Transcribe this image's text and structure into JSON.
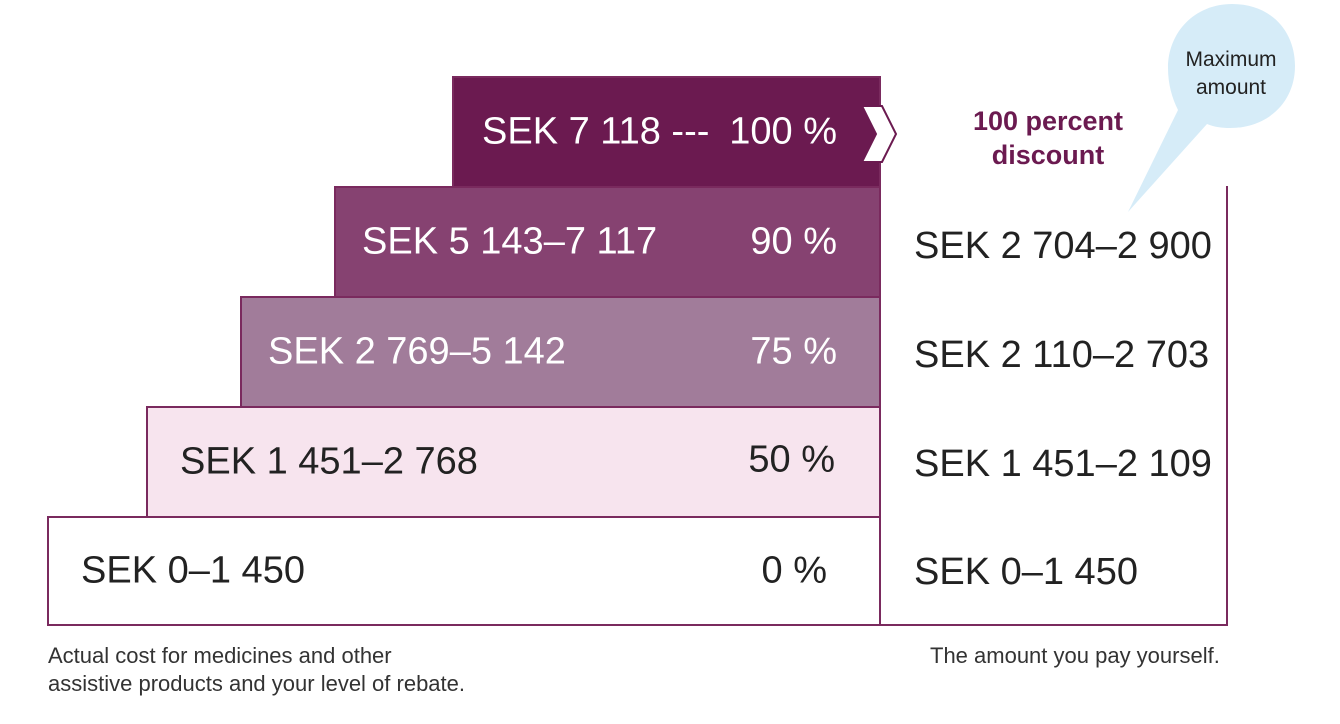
{
  "tiers": [
    {
      "range": "SEK 7 118 ---",
      "rebate": "100 %",
      "fill": "#6b1a50",
      "text_color": "#ffffff"
    },
    {
      "range": "SEK 5 143–7 117",
      "rebate": "90 %",
      "fill": "#864271",
      "text_color": "#ffffff"
    },
    {
      "range": "SEK 2 769–5 142",
      "rebate": "75 %",
      "fill": "#a17c9a",
      "text_color": "#ffffff"
    },
    {
      "range": "SEK 1 451–2 768",
      "rebate": "50 %",
      "fill": "#f7e4ee",
      "text_color": "#222222"
    },
    {
      "range": "SEK 0–1 450",
      "rebate": "0 %",
      "fill": "#ffffff",
      "text_color": "#222222"
    }
  ],
  "top_label": {
    "line1": "100 percent",
    "line2": "discount"
  },
  "pay_ranges": [
    "SEK 2 704–2 900",
    "SEK 2 110–2 703",
    "SEK 1 451–2 109",
    "SEK 0–1 450"
  ],
  "bubble": {
    "line1": "Maximum",
    "line2": "amount",
    "color": "#d6ecf8"
  },
  "captions": {
    "left_line1": "Actual cost for medicines and other",
    "left_line2": "assistive products and your level of rebate.",
    "right": "The amount you pay yourself."
  },
  "colors": {
    "border": "#7a2a5e",
    "accent": "#6b1a50"
  }
}
